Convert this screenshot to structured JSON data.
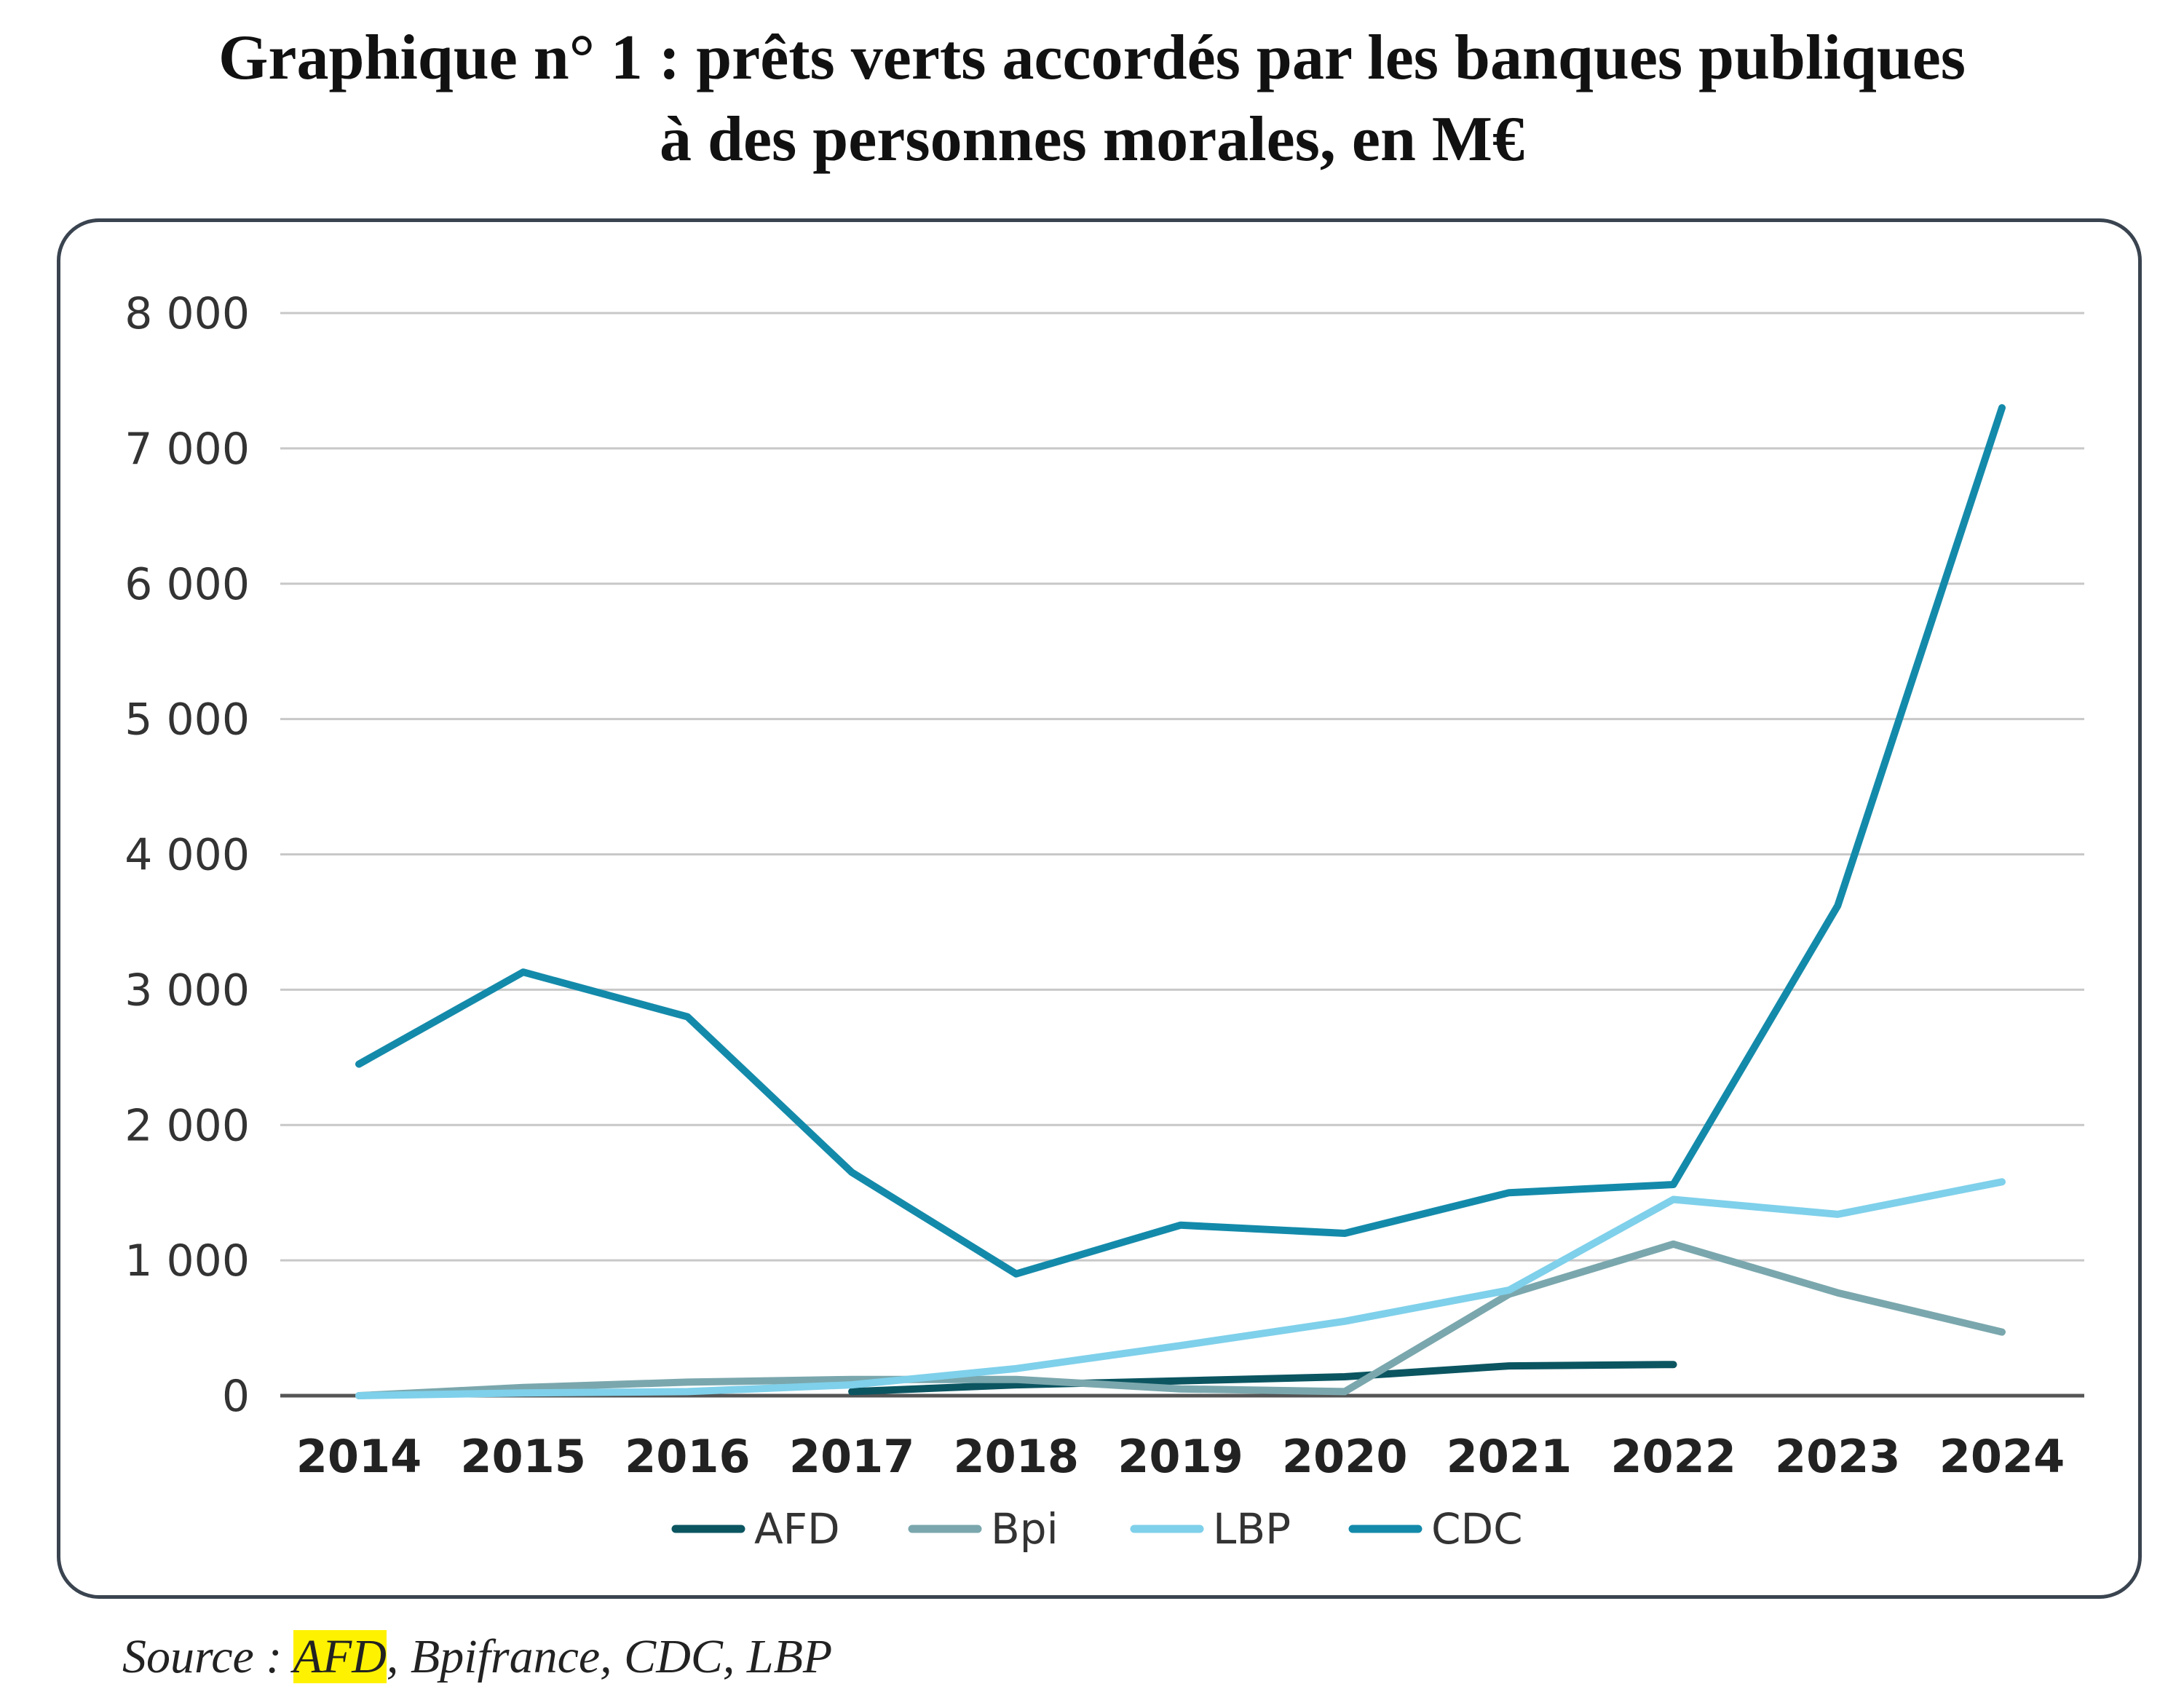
{
  "title": {
    "line1": "Graphique n° 1 : prêts verts accordés par les banques publiques",
    "line2": "à des personnes morales, en M€"
  },
  "source": {
    "prefix": "Source : ",
    "highlighted": "AFD",
    "rest": ", Bpifrance, CDC, LBP"
  },
  "colors": {
    "AFD": "#0b5561",
    "Bpi": "#7aa7ad",
    "LBP": "#7fd0ea",
    "CDC": "#148aaa",
    "grid": "#c8c8c8",
    "axis": "#555555",
    "source_highlight": "#fff200"
  },
  "chart_data": {
    "type": "line",
    "title": "Graphique n° 1 : prêts verts accordés par les banques publiques à des personnes morales, en M€",
    "xlabel": "",
    "ylabel": "",
    "categories": [
      "2014",
      "2015",
      "2016",
      "2017",
      "2018",
      "2019",
      "2020",
      "2021",
      "2022",
      "2023",
      "2024"
    ],
    "ylim": [
      0,
      8000
    ],
    "yticks": [
      0,
      1000,
      2000,
      3000,
      4000,
      5000,
      6000,
      7000,
      8000
    ],
    "ytick_labels": [
      "0",
      "1 000",
      "2 000",
      "3 000",
      "4 000",
      "5 000",
      "6 000",
      "7 000",
      "8 000"
    ],
    "grid": true,
    "legend_position": "bottom",
    "series": [
      {
        "name": "AFD",
        "values": [
          null,
          null,
          null,
          30,
          80,
          110,
          140,
          220,
          230,
          null,
          null
        ]
      },
      {
        "name": "Bpi",
        "values": [
          0,
          60,
          100,
          120,
          120,
          50,
          30,
          750,
          1120,
          760,
          470
        ]
      },
      {
        "name": "LBP",
        "values": [
          0,
          20,
          30,
          80,
          200,
          370,
          550,
          780,
          1450,
          1340,
          1580
        ]
      },
      {
        "name": "CDC",
        "values": [
          2450,
          3130,
          2800,
          1650,
          900,
          1260,
          1200,
          1500,
          1560,
          3620,
          7300
        ]
      }
    ]
  }
}
